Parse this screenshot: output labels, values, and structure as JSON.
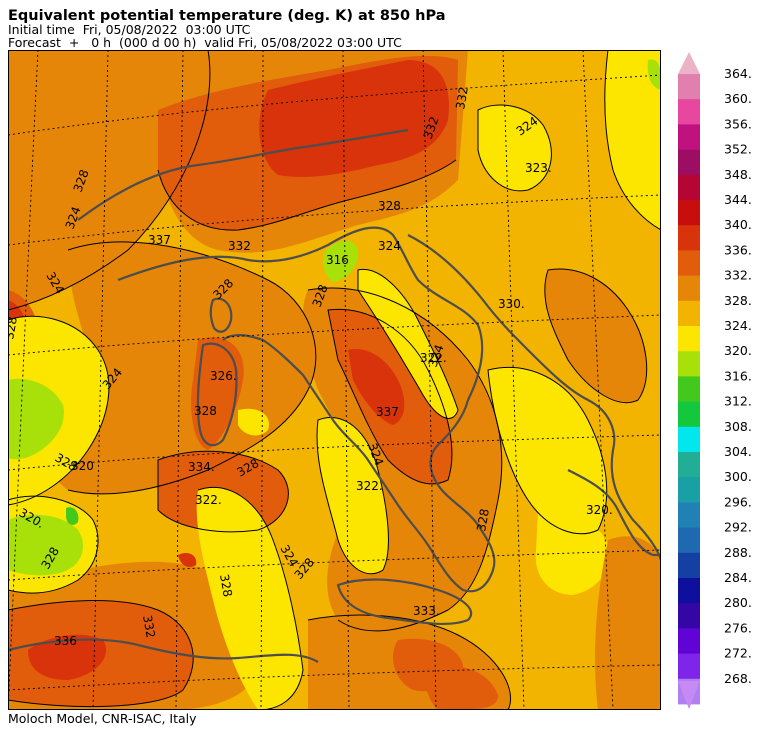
{
  "header": {
    "title": "Equivalent potential temperature (deg. K) at 850 hPa",
    "initial_time": "Initial time  Fri, 05/08/2022  03:00 UTC",
    "forecast": "Forecast  +   0 h  (000 d 00 h)  valid Fri, 05/08/2022 03:00 UTC"
  },
  "footer": "Moloch Model, CNR-ISAC, Italy",
  "colorbar": {
    "levels": [
      "364.",
      "360.",
      "356.",
      "352.",
      "348.",
      "344.",
      "340.",
      "336.",
      "332.",
      "328.",
      "324.",
      "320.",
      "316.",
      "312.",
      "308.",
      "304.",
      "300.",
      "296.",
      "292.",
      "288.",
      "284.",
      "280.",
      "276.",
      "272.",
      "268."
    ],
    "colors": [
      "#e17fae",
      "#e8479f",
      "#c0127e",
      "#9c0d64",
      "#b40534",
      "#c80d0d",
      "#d9330b",
      "#e15c0b",
      "#e68609",
      "#f2b400",
      "#fce600",
      "#a8e10a",
      "#43c81e",
      "#13c83c",
      "#02e6ee",
      "#21ad96",
      "#18a0a4",
      "#2281b4",
      "#1f69b1",
      "#1440a4",
      "#0e0f9c",
      "#3406a6",
      "#6203d6",
      "#7f25e9",
      "#b17ff0"
    ],
    "top_arrow_color": "#eab3c8",
    "bottom_arrow_color": "#c58af4"
  },
  "map_colors": {
    "c316": "#a8e10a",
    "c320": "#fce600",
    "c324": "#f2b400",
    "c328": "#e68609",
    "c332": "#e15c0b",
    "c336": "#d9330b",
    "coast": "#4d4d4d",
    "grid": "#000000"
  },
  "contour_labels": [
    "324",
    "323.",
    "328",
    "324",
    "316",
    "328",
    "324",
    "330.",
    "328",
    "332",
    "337",
    "332",
    "332",
    "328",
    "324",
    "328",
    "326.",
    "322.",
    "324",
    "337",
    "334.",
    "328",
    "322.",
    "324",
    "322.",
    "328",
    "324",
    "328",
    "320.",
    "320",
    "328",
    "336",
    "332",
    "328",
    "324",
    "333.",
    "328",
    "328",
    "320."
  ]
}
